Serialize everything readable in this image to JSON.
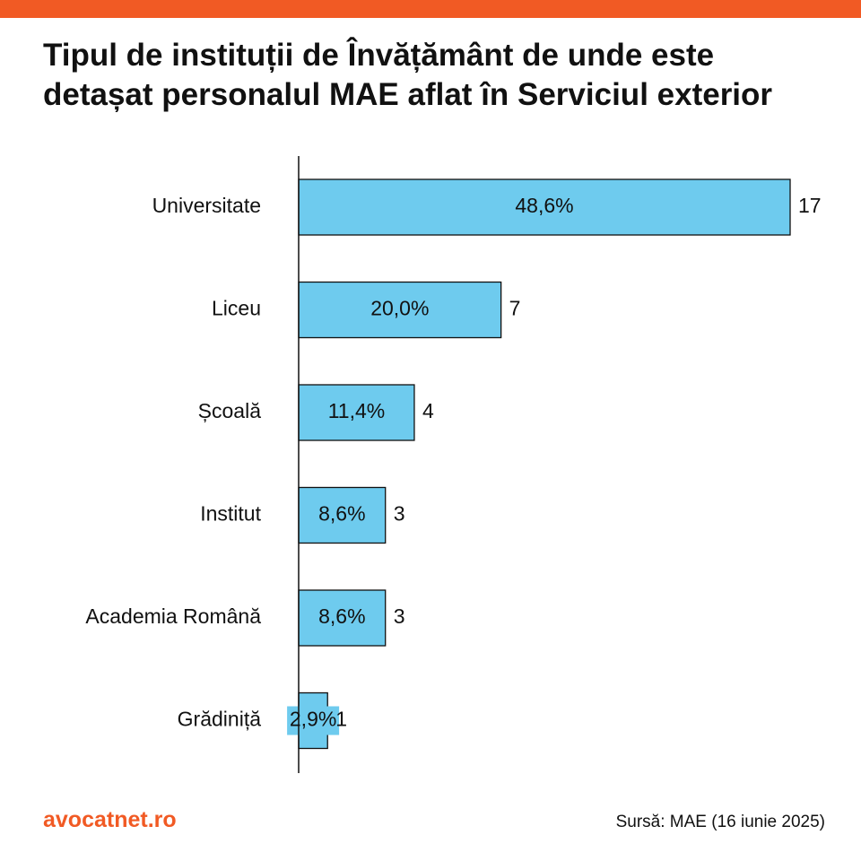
{
  "header": {
    "title": "Tipul de instituții de Învățământ de unde este detașat personalul MAE aflat în Serviciul exterior"
  },
  "chart_data": {
    "type": "bar",
    "orientation": "horizontal",
    "categories": [
      "Universitate",
      "Liceu",
      "Școală",
      "Institut",
      "Academia Română",
      "Grădiniță"
    ],
    "values": [
      17,
      7,
      4,
      3,
      3,
      1
    ],
    "percent_labels": [
      "48,6%",
      "20,0%",
      "11,4%",
      "8,6%",
      "8,6%",
      "2,9%"
    ],
    "xlim": [
      0,
      17
    ],
    "grid": false,
    "legend": "none"
  },
  "footer": {
    "brand": "avocatnet.ro",
    "source": "Sursă: MAE (16 iunie 2025)"
  },
  "colors": {
    "accent": "#F15A24",
    "bar_fill": "#6ECBEE",
    "bar_stroke": "#111111",
    "text": "#111111"
  }
}
